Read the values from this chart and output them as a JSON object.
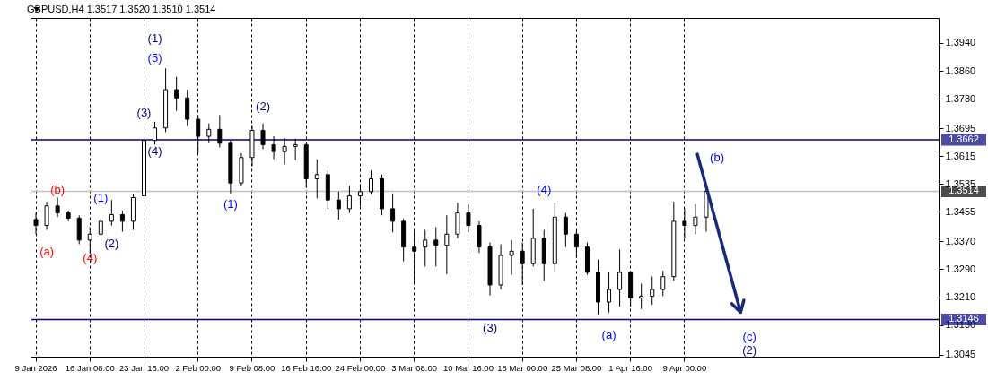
{
  "chart_data": {
    "type": "candlestick",
    "title": "GBPUSD,H4  1.3517 1.3520 1.3510 1.3514",
    "categories": [
      "9 Jan 2026",
      null,
      null,
      null,
      null,
      "16 Jan 08:00",
      null,
      null,
      null,
      null,
      "23 Jan 16:00",
      null,
      null,
      null,
      null,
      "2 Feb 00:00",
      null,
      null,
      null,
      null,
      "9 Feb 08:00",
      null,
      null,
      null,
      null,
      "16 Feb 16:00",
      null,
      null,
      null,
      null,
      "24 Feb 00:00",
      null,
      null,
      null,
      null,
      "3 Mar 08:00",
      null,
      null,
      null,
      null,
      "10 Mar 16:00",
      null,
      null,
      null,
      null,
      "18 Mar 00:00",
      null,
      null,
      null,
      null,
      "25 Mar 08:00",
      null,
      null,
      null,
      null,
      "1 Apr 16:00",
      null,
      null,
      null,
      null,
      "9 Apr 00:00",
      null,
      null,
      null,
      null,
      null,
      null,
      null,
      null,
      null,
      null,
      null,
      null,
      null,
      null,
      null,
      null,
      null,
      null,
      null,
      null,
      null,
      null,
      null
    ],
    "ohlc": [
      [
        1.3433,
        1.3452,
        1.3391,
        1.3416
      ],
      [
        1.3416,
        1.3484,
        1.3403,
        1.3472
      ],
      [
        1.3472,
        1.3496,
        1.344,
        1.3452
      ],
      [
        1.3452,
        1.3459,
        1.3428,
        1.3437
      ],
      [
        1.3437,
        1.3445,
        1.3362,
        1.3374
      ],
      [
        1.3374,
        1.3411,
        1.3335,
        1.3391
      ],
      [
        1.3391,
        1.3435,
        1.3388,
        1.3428
      ],
      [
        1.3428,
        1.3489,
        1.3416,
        1.3447
      ],
      [
        1.3447,
        1.3459,
        1.3398,
        1.3428
      ],
      [
        1.3428,
        1.3506,
        1.3403,
        1.3496
      ],
      [
        1.3501,
        1.3679,
        1.3496,
        1.366
      ],
      [
        1.366,
        1.3714,
        1.3648,
        1.3696
      ],
      [
        1.3696,
        1.3867,
        1.3684,
        1.3806
      ],
      [
        1.3806,
        1.3843,
        1.3745,
        1.3782
      ],
      [
        1.3782,
        1.3806,
        1.3701,
        1.3721
      ],
      [
        1.3721,
        1.3733,
        1.3623,
        1.3672
      ],
      [
        1.3672,
        1.3709,
        1.3652,
        1.3692
      ],
      [
        1.3692,
        1.3733,
        1.364,
        1.3652
      ],
      [
        1.3652,
        1.366,
        1.3508,
        1.3538
      ],
      [
        1.3538,
        1.3623,
        1.353,
        1.3611
      ],
      [
        1.3611,
        1.3701,
        1.3587,
        1.3689
      ],
      [
        1.3689,
        1.3709,
        1.3635,
        1.3648
      ],
      [
        1.3648,
        1.3672,
        1.3606,
        1.3628
      ],
      [
        1.3628,
        1.3667,
        1.3591,
        1.3643
      ],
      [
        1.3643,
        1.3665,
        1.3604,
        1.3648
      ],
      [
        1.3648,
        1.3652,
        1.3525,
        1.355
      ],
      [
        1.355,
        1.3606,
        1.3494,
        1.3562
      ],
      [
        1.3562,
        1.3574,
        1.3464,
        1.3489
      ],
      [
        1.3489,
        1.3513,
        1.3433,
        1.3464
      ],
      [
        1.3464,
        1.353,
        1.3452,
        1.3501
      ],
      [
        1.3501,
        1.3535,
        1.3472,
        1.3513
      ],
      [
        1.3513,
        1.3574,
        1.3506,
        1.355
      ],
      [
        1.355,
        1.3562,
        1.3445,
        1.3464
      ],
      [
        1.3464,
        1.3508,
        1.3396,
        1.3428
      ],
      [
        1.3428,
        1.3435,
        1.3313,
        1.3354
      ],
      [
        1.3354,
        1.3403,
        1.3252,
        1.3342
      ],
      [
        1.3354,
        1.3403,
        1.3298,
        1.3374
      ],
      [
        1.3374,
        1.3411,
        1.3298,
        1.3359
      ],
      [
        1.3359,
        1.3445,
        1.3276,
        1.3391
      ],
      [
        1.3391,
        1.3481,
        1.3379,
        1.3452
      ],
      [
        1.3452,
        1.3477,
        1.3396,
        1.3416
      ],
      [
        1.3416,
        1.3428,
        1.3337,
        1.3354
      ],
      [
        1.3354,
        1.3367,
        1.3215,
        1.3245
      ],
      [
        1.3245,
        1.3362,
        1.3232,
        1.333
      ],
      [
        1.333,
        1.3374,
        1.3274,
        1.3342
      ],
      [
        1.3342,
        1.3367,
        1.3245,
        1.3306
      ],
      [
        1.3306,
        1.3464,
        1.3298,
        1.3379
      ],
      [
        1.3379,
        1.3403,
        1.3257,
        1.3306
      ],
      [
        1.3306,
        1.3481,
        1.3281,
        1.344
      ],
      [
        1.344,
        1.3452,
        1.3354,
        1.3391
      ],
      [
        1.3391,
        1.3403,
        1.3323,
        1.3354
      ],
      [
        1.3354,
        1.3367,
        1.3274,
        1.3281
      ],
      [
        1.3281,
        1.3318,
        1.3159,
        1.3196
      ],
      [
        1.3196,
        1.3281,
        1.3166,
        1.3232
      ],
      [
        1.3232,
        1.3347,
        1.3183,
        1.3281
      ],
      [
        1.3281,
        1.3286,
        1.3183,
        1.3208
      ],
      [
        1.3208,
        1.3249,
        1.3176,
        1.3213
      ],
      [
        1.3213,
        1.3269,
        1.3188,
        1.3232
      ],
      [
        1.3232,
        1.3286,
        1.3213,
        1.3269
      ],
      [
        1.3269,
        1.3484,
        1.3257,
        1.3428
      ],
      [
        1.3428,
        1.3464,
        1.3379,
        1.3416
      ],
      [
        1.3416,
        1.3477,
        1.3391,
        1.344
      ],
      [
        1.344,
        1.3521,
        1.3398,
        1.3514
      ],
      null,
      null,
      null,
      null,
      null,
      null,
      null,
      null,
      null,
      null,
      null,
      null,
      null,
      null,
      null,
      null,
      null,
      null,
      null,
      null,
      null
    ],
    "ylim": [
      1.3039,
      1.4012
    ],
    "yticks": [
      {
        "value": 1.394,
        "label": "1.3940"
      },
      {
        "value": 1.386,
        "label": "1.3860"
      },
      {
        "value": 1.378,
        "label": "1.3780"
      },
      1.3695,
      1.3615,
      1.3535,
      1.3455,
      {
        "value": 1.337,
        "label": "1.3370"
      },
      {
        "value": 1.329,
        "label": "1.3290"
      },
      {
        "value": 1.321,
        "label": "1.3210"
      },
      {
        "value": 1.313,
        "label": "1.3130"
      },
      1.3045
    ],
    "grid": "x",
    "ref_lines": [
      {
        "axis": "y",
        "value": 1.3662,
        "label": "1.3662",
        "color": "#000080"
      },
      {
        "axis": "y",
        "value": 1.3146,
        "label": "1.3146",
        "color": "#000080"
      },
      {
        "axis": "y",
        "value": 1.3514,
        "label": "1.3514",
        "color": "#c0c0c0"
      }
    ],
    "annotations": [
      "(a)",
      "(b)",
      "(4)",
      "(1)",
      "(2)",
      "(3)",
      "(4)",
      "(5)",
      "(1)",
      "(1)",
      "(2)",
      "(3)",
      "(4)",
      "(a)",
      "(b)",
      "(c)",
      "(2)"
    ]
  }
}
